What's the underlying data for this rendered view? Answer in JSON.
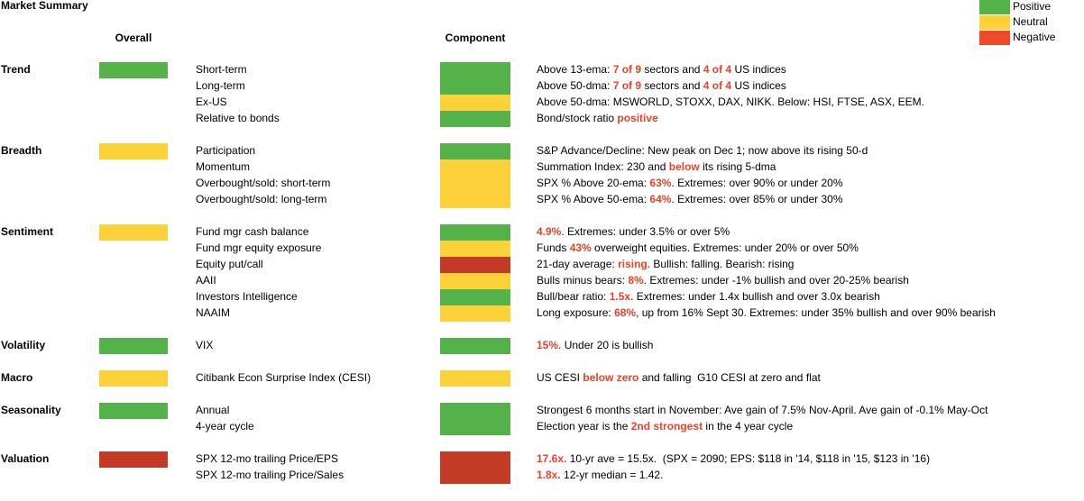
{
  "header": {
    "title": "Market Summary",
    "overall": "Overall",
    "component": "Component"
  },
  "legend": [
    {
      "label": "Positive",
      "color": "#55b24a"
    },
    {
      "label": "Neutral",
      "color": "#fdd13a"
    },
    {
      "label": "Negative",
      "color": "#ec4a2b"
    }
  ],
  "highlight_color": "#e8412a",
  "groups": [
    {
      "name": "Trend",
      "color": "#55b24a",
      "rows": [
        {
          "label": "Short-term",
          "color": "#55b24a",
          "detail": [
            {
              "text": "Above 13-ema: "
            },
            {
              "text": "7 of 9",
              "highlight": true
            },
            {
              "text": " sectors and "
            },
            {
              "text": "4 of 4",
              "highlight": true
            },
            {
              "text": " US indices"
            }
          ]
        },
        {
          "label": "Long-term",
          "color": "#55b24a",
          "detail": [
            {
              "text": "Above 50-dma: "
            },
            {
              "text": "7 of 9",
              "highlight": true
            },
            {
              "text": " sectors and "
            },
            {
              "text": "4 of 4",
              "highlight": true
            },
            {
              "text": " US indices"
            }
          ]
        },
        {
          "label": "Ex-US",
          "color": "#fdd13a",
          "detail": [
            {
              "text": "Above 50-dma: MSWORLD, STOXX, DAX, NIKK. Below: HSI, FTSE, ASX, EEM."
            }
          ]
        },
        {
          "label": "Relative to bonds",
          "color": "#55b24a",
          "detail": [
            {
              "text": "Bond/stock ratio "
            },
            {
              "text": "positive",
              "highlight": true
            }
          ]
        }
      ]
    },
    {
      "name": "Breadth",
      "color": "#fdd13a",
      "rows": [
        {
          "label": "Participation",
          "color": "#55b24a",
          "detail": [
            {
              "text": "S&P Advance/Decline: New peak on Dec 1; now above its rising 50-d"
            }
          ]
        },
        {
          "label": "Momentum",
          "color": "#fdd13a",
          "detail": [
            {
              "text": "Summation Index: 230 and "
            },
            {
              "text": "below",
              "highlight": true
            },
            {
              "text": " its rising 5-dma"
            }
          ]
        },
        {
          "label": "Overbought/sold: short-term",
          "color": "#fdd13a",
          "detail": [
            {
              "text": "SPX % Above 20-ema: "
            },
            {
              "text": "63%",
              "highlight": true
            },
            {
              "text": ". Extremes: over 90% or under 20%"
            }
          ]
        },
        {
          "label": "Overbought/sold: long-term",
          "color": "#fdd13a",
          "detail": [
            {
              "text": "SPX % Above 50-ema: "
            },
            {
              "text": "64%",
              "highlight": true
            },
            {
              "text": ". Extremes: over 85% or under 30%"
            }
          ]
        }
      ]
    },
    {
      "name": "Sentiment",
      "color": "#fdd13a",
      "rows": [
        {
          "label": "Fund mgr cash balance",
          "color": "#55b24a",
          "detail": [
            {
              "text": "4.9%",
              "highlight": true
            },
            {
              "text": ". Extremes: under 3.5% or over 5%"
            }
          ]
        },
        {
          "label": "Fund mgr equity exposure",
          "color": "#fdd13a",
          "detail": [
            {
              "text": "Funds "
            },
            {
              "text": "43%",
              "highlight": true
            },
            {
              "text": " overweight equities. Extremes: under 20% or over 50%"
            }
          ]
        },
        {
          "label": "Equity put/call",
          "color": "#c23b26",
          "detail": [
            {
              "text": "21-day average: "
            },
            {
              "text": "rising.",
              "highlight": true
            },
            {
              "text": " Bullish: falling. Bearish: rising"
            }
          ]
        },
        {
          "label": "AAII",
          "color": "#fdd13a",
          "detail": [
            {
              "text": "Bulls minus bears: "
            },
            {
              "text": "8%",
              "highlight": true
            },
            {
              "text": ". Extremes: under -1% bullish and over 20-25% bearish"
            }
          ]
        },
        {
          "label": "Investors Intelligence",
          "color": "#55b24a",
          "detail": [
            {
              "text": "Bull/bear ratio: "
            },
            {
              "text": "1.5x",
              "highlight": true
            },
            {
              "text": ". Extremes: under 1.4x bullish and over 3.0x bearish"
            }
          ]
        },
        {
          "label": "NAAIM",
          "color": "#fdd13a",
          "detail": [
            {
              "text": "Long exposure: "
            },
            {
              "text": "68%",
              "highlight": true
            },
            {
              "text": ", up from 16% Sept 30. Extremes: under 35% bullish and over 90% bearish"
            }
          ]
        }
      ]
    },
    {
      "name": "Volatility",
      "color": "#55b24a",
      "rows": [
        {
          "label": "VIX",
          "color": "#55b24a",
          "detail": [
            {
              "text": "15%",
              "highlight": true
            },
            {
              "text": ". Under 20 is bullish"
            }
          ]
        }
      ]
    },
    {
      "name": "Macro",
      "color": "#fdd13a",
      "rows": [
        {
          "label": "Citibank Econ Surprise Index (CESI)",
          "color": "#fdd13a",
          "detail": [
            {
              "text": "US CESI "
            },
            {
              "text": "below zero",
              "highlight": true
            },
            {
              "text": " and falling  G10 CESI at zero and flat"
            }
          ]
        }
      ]
    },
    {
      "name": "Seasonality",
      "color": "#55b24a",
      "rows": [
        {
          "label": "Annual",
          "color": "#55b24a",
          "detail": [
            {
              "text": "Strongest 6 months start in November: Ave gain of 7.5% Nov-April. Ave gain of -0.1% May-Oct"
            }
          ]
        },
        {
          "label": "4-year cycle",
          "color": "#55b24a",
          "detail": [
            {
              "text": "Election year is the "
            },
            {
              "text": "2nd strongest",
              "highlight": true
            },
            {
              "text": " in the 4 year cycle"
            }
          ]
        }
      ]
    },
    {
      "name": "Valuation",
      "color": "#c23b26",
      "rows": [
        {
          "label": "SPX 12-mo trailing Price/EPS",
          "color": "#c23b26",
          "detail": [
            {
              "text": "17.6x.",
              "highlight": true
            },
            {
              "text": " 10-yr ave = 15.5x.  (SPX = 2090; EPS: $118 in '14, $118 in '15, $123 in '16)"
            }
          ]
        },
        {
          "label": "SPX 12-mo trailing Price/Sales",
          "color": "#c23b26",
          "detail": [
            {
              "text": "1.8x.",
              "highlight": true
            },
            {
              "text": " 12-yr median = 1.42."
            }
          ]
        }
      ]
    }
  ]
}
